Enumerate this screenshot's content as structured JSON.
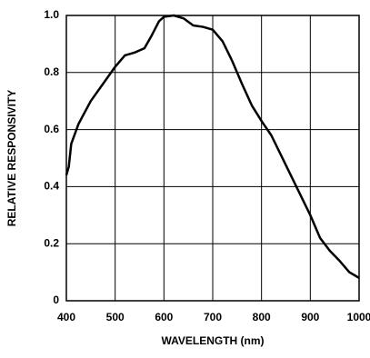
{
  "chart_data": {
    "type": "line",
    "x_label": "WAVELENGTH (nm)",
    "y_label": "RELATIVE RESPONSIVITY",
    "x": [
      400,
      405,
      410,
      425,
      450,
      475,
      500,
      520,
      540,
      560,
      575,
      590,
      600,
      620,
      640,
      660,
      680,
      700,
      720,
      740,
      760,
      780,
      800,
      820,
      840,
      860,
      880,
      900,
      920,
      940,
      960,
      980,
      1000
    ],
    "series": [
      {
        "color": "#000000",
        "values": [
          0.44,
          0.47,
          0.55,
          0.62,
          0.7,
          0.76,
          0.82,
          0.86,
          0.87,
          0.885,
          0.93,
          0.98,
          0.995,
          1.0,
          0.99,
          0.965,
          0.96,
          0.95,
          0.91,
          0.84,
          0.76,
          0.685,
          0.63,
          0.58,
          0.51,
          0.44,
          0.37,
          0.3,
          0.22,
          0.175,
          0.14,
          0.1,
          0.08
        ]
      }
    ],
    "xlim": [
      400,
      1000
    ],
    "xticks": [
      400,
      500,
      600,
      700,
      800,
      900,
      1000
    ],
    "ylim": [
      0,
      1
    ],
    "yticks": [
      0,
      0.2,
      0.4,
      0.6,
      0.8,
      {
        "value": 1,
        "label": "1.0"
      }
    ],
    "grid": true
  }
}
